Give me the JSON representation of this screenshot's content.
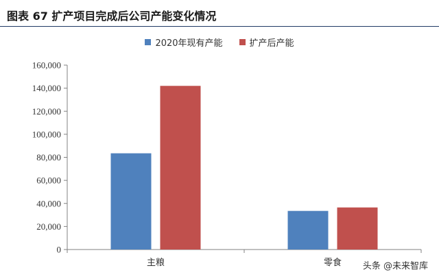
{
  "header": {
    "title": "图表 67  扩产项目完成后公司产能变化情况"
  },
  "watermark": "头条 @未来智库",
  "colors": {
    "series_a": "#4f81bd",
    "series_b": "#c0504d",
    "axis": "#808080",
    "title_rule": "#1f3864"
  },
  "chart_data": {
    "type": "bar",
    "categories": [
      "主粮",
      "零食"
    ],
    "series": [
      {
        "name": "2020年现有产能",
        "values": [
          83500,
          33500
        ]
      },
      {
        "name": "扩产后产能",
        "values": [
          142000,
          36500
        ]
      }
    ],
    "ylim": [
      0,
      160000
    ],
    "yticks": [
      "0",
      "20,000",
      "40,000",
      "60,000",
      "80,000",
      "100,000",
      "120,000",
      "140,000",
      "160,000"
    ],
    "grid": false,
    "legend_position": "top"
  }
}
